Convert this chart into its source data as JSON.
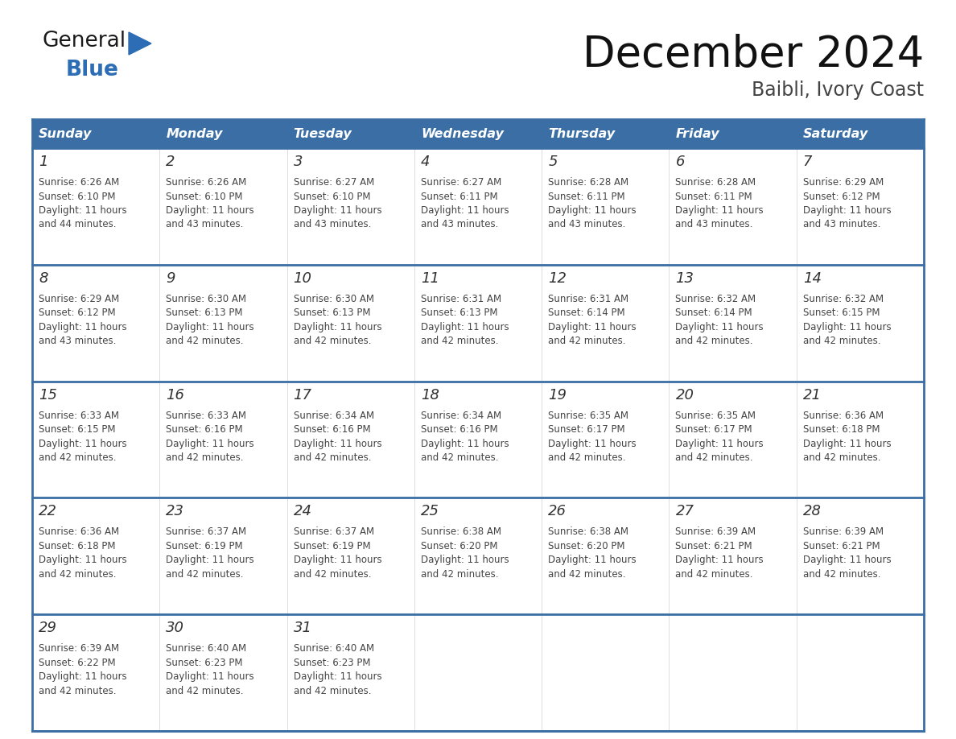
{
  "title": "December 2024",
  "subtitle": "Baibli, Ivory Coast",
  "header_color": "#3a6ea5",
  "header_text_color": "#ffffff",
  "cell_bg_color": "#ffffff",
  "border_color": "#3a6ea5",
  "row_separator_color": "#3a6ea5",
  "col_separator_color": "#cccccc",
  "text_color": "#444444",
  "day_headers": [
    "Sunday",
    "Monday",
    "Tuesday",
    "Wednesday",
    "Thursday",
    "Friday",
    "Saturday"
  ],
  "weeks": [
    [
      {
        "day": 1,
        "sunrise": "6:26 AM",
        "sunset": "6:10 PM",
        "daylight_hours": 11,
        "daylight_minutes": 44
      },
      {
        "day": 2,
        "sunrise": "6:26 AM",
        "sunset": "6:10 PM",
        "daylight_hours": 11,
        "daylight_minutes": 43
      },
      {
        "day": 3,
        "sunrise": "6:27 AM",
        "sunset": "6:10 PM",
        "daylight_hours": 11,
        "daylight_minutes": 43
      },
      {
        "day": 4,
        "sunrise": "6:27 AM",
        "sunset": "6:11 PM",
        "daylight_hours": 11,
        "daylight_minutes": 43
      },
      {
        "day": 5,
        "sunrise": "6:28 AM",
        "sunset": "6:11 PM",
        "daylight_hours": 11,
        "daylight_minutes": 43
      },
      {
        "day": 6,
        "sunrise": "6:28 AM",
        "sunset": "6:11 PM",
        "daylight_hours": 11,
        "daylight_minutes": 43
      },
      {
        "day": 7,
        "sunrise": "6:29 AM",
        "sunset": "6:12 PM",
        "daylight_hours": 11,
        "daylight_minutes": 43
      }
    ],
    [
      {
        "day": 8,
        "sunrise": "6:29 AM",
        "sunset": "6:12 PM",
        "daylight_hours": 11,
        "daylight_minutes": 43
      },
      {
        "day": 9,
        "sunrise": "6:30 AM",
        "sunset": "6:13 PM",
        "daylight_hours": 11,
        "daylight_minutes": 42
      },
      {
        "day": 10,
        "sunrise": "6:30 AM",
        "sunset": "6:13 PM",
        "daylight_hours": 11,
        "daylight_minutes": 42
      },
      {
        "day": 11,
        "sunrise": "6:31 AM",
        "sunset": "6:13 PM",
        "daylight_hours": 11,
        "daylight_minutes": 42
      },
      {
        "day": 12,
        "sunrise": "6:31 AM",
        "sunset": "6:14 PM",
        "daylight_hours": 11,
        "daylight_minutes": 42
      },
      {
        "day": 13,
        "sunrise": "6:32 AM",
        "sunset": "6:14 PM",
        "daylight_hours": 11,
        "daylight_minutes": 42
      },
      {
        "day": 14,
        "sunrise": "6:32 AM",
        "sunset": "6:15 PM",
        "daylight_hours": 11,
        "daylight_minutes": 42
      }
    ],
    [
      {
        "day": 15,
        "sunrise": "6:33 AM",
        "sunset": "6:15 PM",
        "daylight_hours": 11,
        "daylight_minutes": 42
      },
      {
        "day": 16,
        "sunrise": "6:33 AM",
        "sunset": "6:16 PM",
        "daylight_hours": 11,
        "daylight_minutes": 42
      },
      {
        "day": 17,
        "sunrise": "6:34 AM",
        "sunset": "6:16 PM",
        "daylight_hours": 11,
        "daylight_minutes": 42
      },
      {
        "day": 18,
        "sunrise": "6:34 AM",
        "sunset": "6:16 PM",
        "daylight_hours": 11,
        "daylight_minutes": 42
      },
      {
        "day": 19,
        "sunrise": "6:35 AM",
        "sunset": "6:17 PM",
        "daylight_hours": 11,
        "daylight_minutes": 42
      },
      {
        "day": 20,
        "sunrise": "6:35 AM",
        "sunset": "6:17 PM",
        "daylight_hours": 11,
        "daylight_minutes": 42
      },
      {
        "day": 21,
        "sunrise": "6:36 AM",
        "sunset": "6:18 PM",
        "daylight_hours": 11,
        "daylight_minutes": 42
      }
    ],
    [
      {
        "day": 22,
        "sunrise": "6:36 AM",
        "sunset": "6:18 PM",
        "daylight_hours": 11,
        "daylight_minutes": 42
      },
      {
        "day": 23,
        "sunrise": "6:37 AM",
        "sunset": "6:19 PM",
        "daylight_hours": 11,
        "daylight_minutes": 42
      },
      {
        "day": 24,
        "sunrise": "6:37 AM",
        "sunset": "6:19 PM",
        "daylight_hours": 11,
        "daylight_minutes": 42
      },
      {
        "day": 25,
        "sunrise": "6:38 AM",
        "sunset": "6:20 PM",
        "daylight_hours": 11,
        "daylight_minutes": 42
      },
      {
        "day": 26,
        "sunrise": "6:38 AM",
        "sunset": "6:20 PM",
        "daylight_hours": 11,
        "daylight_minutes": 42
      },
      {
        "day": 27,
        "sunrise": "6:39 AM",
        "sunset": "6:21 PM",
        "daylight_hours": 11,
        "daylight_minutes": 42
      },
      {
        "day": 28,
        "sunrise": "6:39 AM",
        "sunset": "6:21 PM",
        "daylight_hours": 11,
        "daylight_minutes": 42
      }
    ],
    [
      {
        "day": 29,
        "sunrise": "6:39 AM",
        "sunset": "6:22 PM",
        "daylight_hours": 11,
        "daylight_minutes": 42
      },
      {
        "day": 30,
        "sunrise": "6:40 AM",
        "sunset": "6:23 PM",
        "daylight_hours": 11,
        "daylight_minutes": 42
      },
      {
        "day": 31,
        "sunrise": "6:40 AM",
        "sunset": "6:23 PM",
        "daylight_hours": 11,
        "daylight_minutes": 42
      },
      null,
      null,
      null,
      null
    ]
  ],
  "logo_general_color": "#1a1a1a",
  "logo_blue_color": "#2d6db5",
  "logo_triangle_color": "#2d6db5"
}
